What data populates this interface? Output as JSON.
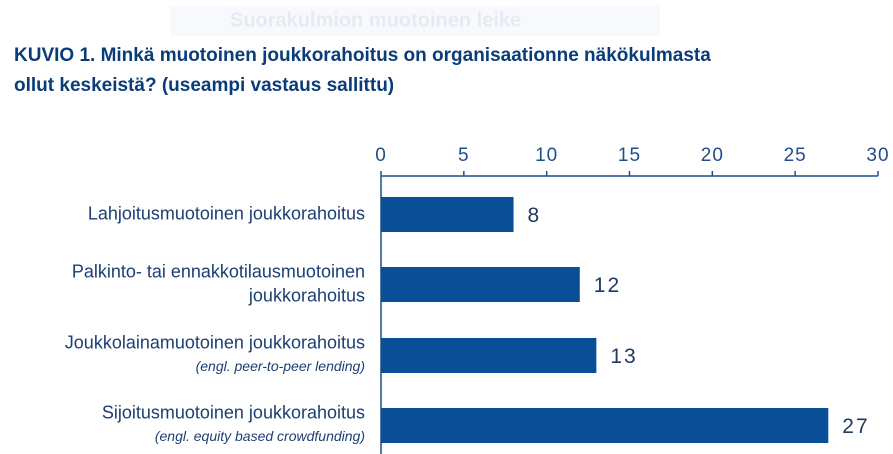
{
  "overlay_text": "Suorakulmion muotoinen leike",
  "chart_data": {
    "type": "bar",
    "orientation": "horizontal",
    "title_lines": [
      "KUVIO 1.  Minkä muotoinen joukkorahoitus on organisaationne näkökulmasta",
      "ollut keskeistä? (useampi vastaus sallittu)"
    ],
    "categories": [
      [
        "Lahjoitusmuotoinen joukkorahoitus"
      ],
      [
        "Palkinto- tai ennakkotilausmuotoinen",
        "joukkorahoitus"
      ],
      [
        "Joukkolainamuotoinen joukkorahoitus"
      ],
      [
        "Sijoitusmuotoinen joukkorahoitus"
      ]
    ],
    "category_notes": [
      null,
      null,
      "(engl. peer-to-peer lending)",
      "(engl. equity based crowdfunding)"
    ],
    "values": [
      8,
      12,
      13,
      27
    ],
    "color": "#0a4f96",
    "xlim": [
      0,
      30
    ],
    "xticks": [
      0,
      5,
      10,
      15,
      20,
      25,
      30
    ]
  }
}
